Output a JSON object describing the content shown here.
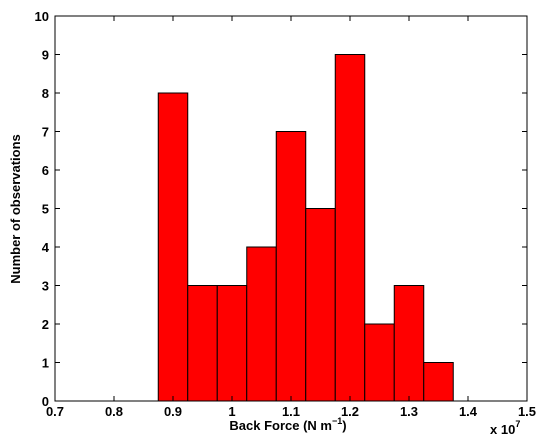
{
  "chart_data": {
    "type": "bar",
    "title": "",
    "xlabel": "Back Force (N m",
    "xlabel_sup": "−1",
    "xlabel_close": ")",
    "ylabel": "Number of observations",
    "x_multiplier": "x 10",
    "x_multiplier_exp": "7",
    "xlim": [
      0.7,
      1.5
    ],
    "ylim": [
      0,
      10
    ],
    "xticks": [
      "0.7",
      "0.8",
      "0.9",
      "1",
      "1.1",
      "1.2",
      "1.3",
      "1.4",
      "1.5"
    ],
    "yticks": [
      "0",
      "1",
      "2",
      "3",
      "4",
      "5",
      "6",
      "7",
      "8",
      "9",
      "10"
    ],
    "bin_edges": [
      0.875,
      0.925,
      0.975,
      1.025,
      1.075,
      1.125,
      1.175,
      1.225,
      1.275,
      1.325,
      1.375
    ],
    "values": [
      8,
      3,
      3,
      4,
      7,
      5,
      9,
      2,
      3,
      1
    ],
    "bar_color": "#ff0000",
    "edge_color": "#000000",
    "grid": false
  }
}
